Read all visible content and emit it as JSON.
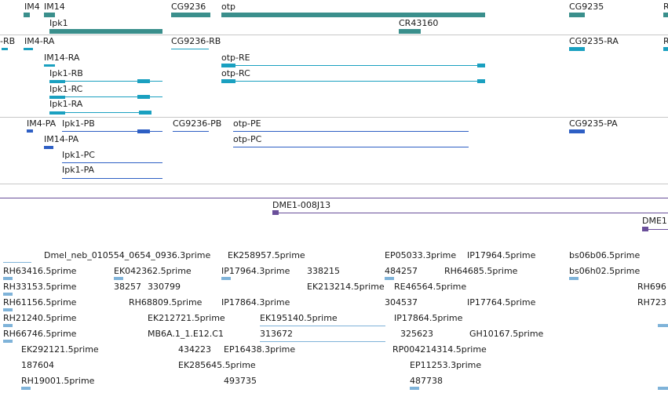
{
  "genes": {
    "labels": [
      "IM4",
      "IM14",
      "CG9236",
      "otp",
      "CG9235",
      "R",
      "Ipk1",
      "CR43160"
    ]
  },
  "transcripts_a": {
    "labels": [
      "-RB",
      "IM4-RA",
      "IM14-RA",
      "CG9236-RB",
      "CG9235-RA",
      "R",
      "Ipk1-RB",
      "Ipk1-RC",
      "Ipk1-RA",
      "otp-RE",
      "otp-RC"
    ]
  },
  "transcripts_b": {
    "labels": [
      "IM4-PA",
      "Ipk1-PB",
      "CG9236-PB",
      "otp-PE",
      "CG9235-PA",
      "IM14-PA",
      "otp-PC",
      "Ipk1-PC",
      "Ipk1-PA"
    ]
  },
  "clones": {
    "labels": [
      "DME1-008J13",
      "DME1"
    ]
  },
  "ests": {
    "labels": [
      "Dmel_neb_010554_0654_0936.3prime",
      "EK258957.5prime",
      "EP05033.3prime",
      "IP17964.5prime",
      "bs06b06.5prime",
      "RH63416.5prime",
      "EK042362.5prime",
      "IP17964.3prime",
      "338215",
      "484257",
      "RH64685.5prime",
      "bs06h02.5prime",
      "RH696",
      "RH33153.5prime",
      "38257",
      "330799",
      "EK213214.5prime",
      "RE46564.5prime",
      "RH61156.5prime",
      "RH68809.5prime",
      "IP17864.3prime",
      "304537",
      "IP17764.5prime",
      "RH723",
      "RH21240.5prime",
      "EK212721.5prime",
      "EK195140.5prime",
      "IP17864.5prime",
      "RH66746.5prime",
      "MB6A.1_1.E12.C1",
      "313672",
      "325623",
      "GH10167.5prime",
      "EK292121.5prime",
      "434223",
      "EP16438.3prime",
      "RP004214314.5prime",
      "187604",
      "EK285645.5prime",
      "EP11253.3prime",
      "RH19001.5prime",
      "493735",
      "487738"
    ]
  },
  "colors": {
    "gene": "#3a8f8c",
    "transcript_a": "#1aa0c0",
    "transcript_b": "#2e5fc4",
    "clone": "#6a4f9a",
    "est": "#7fb3d9",
    "divider": "#c8c8c8"
  }
}
